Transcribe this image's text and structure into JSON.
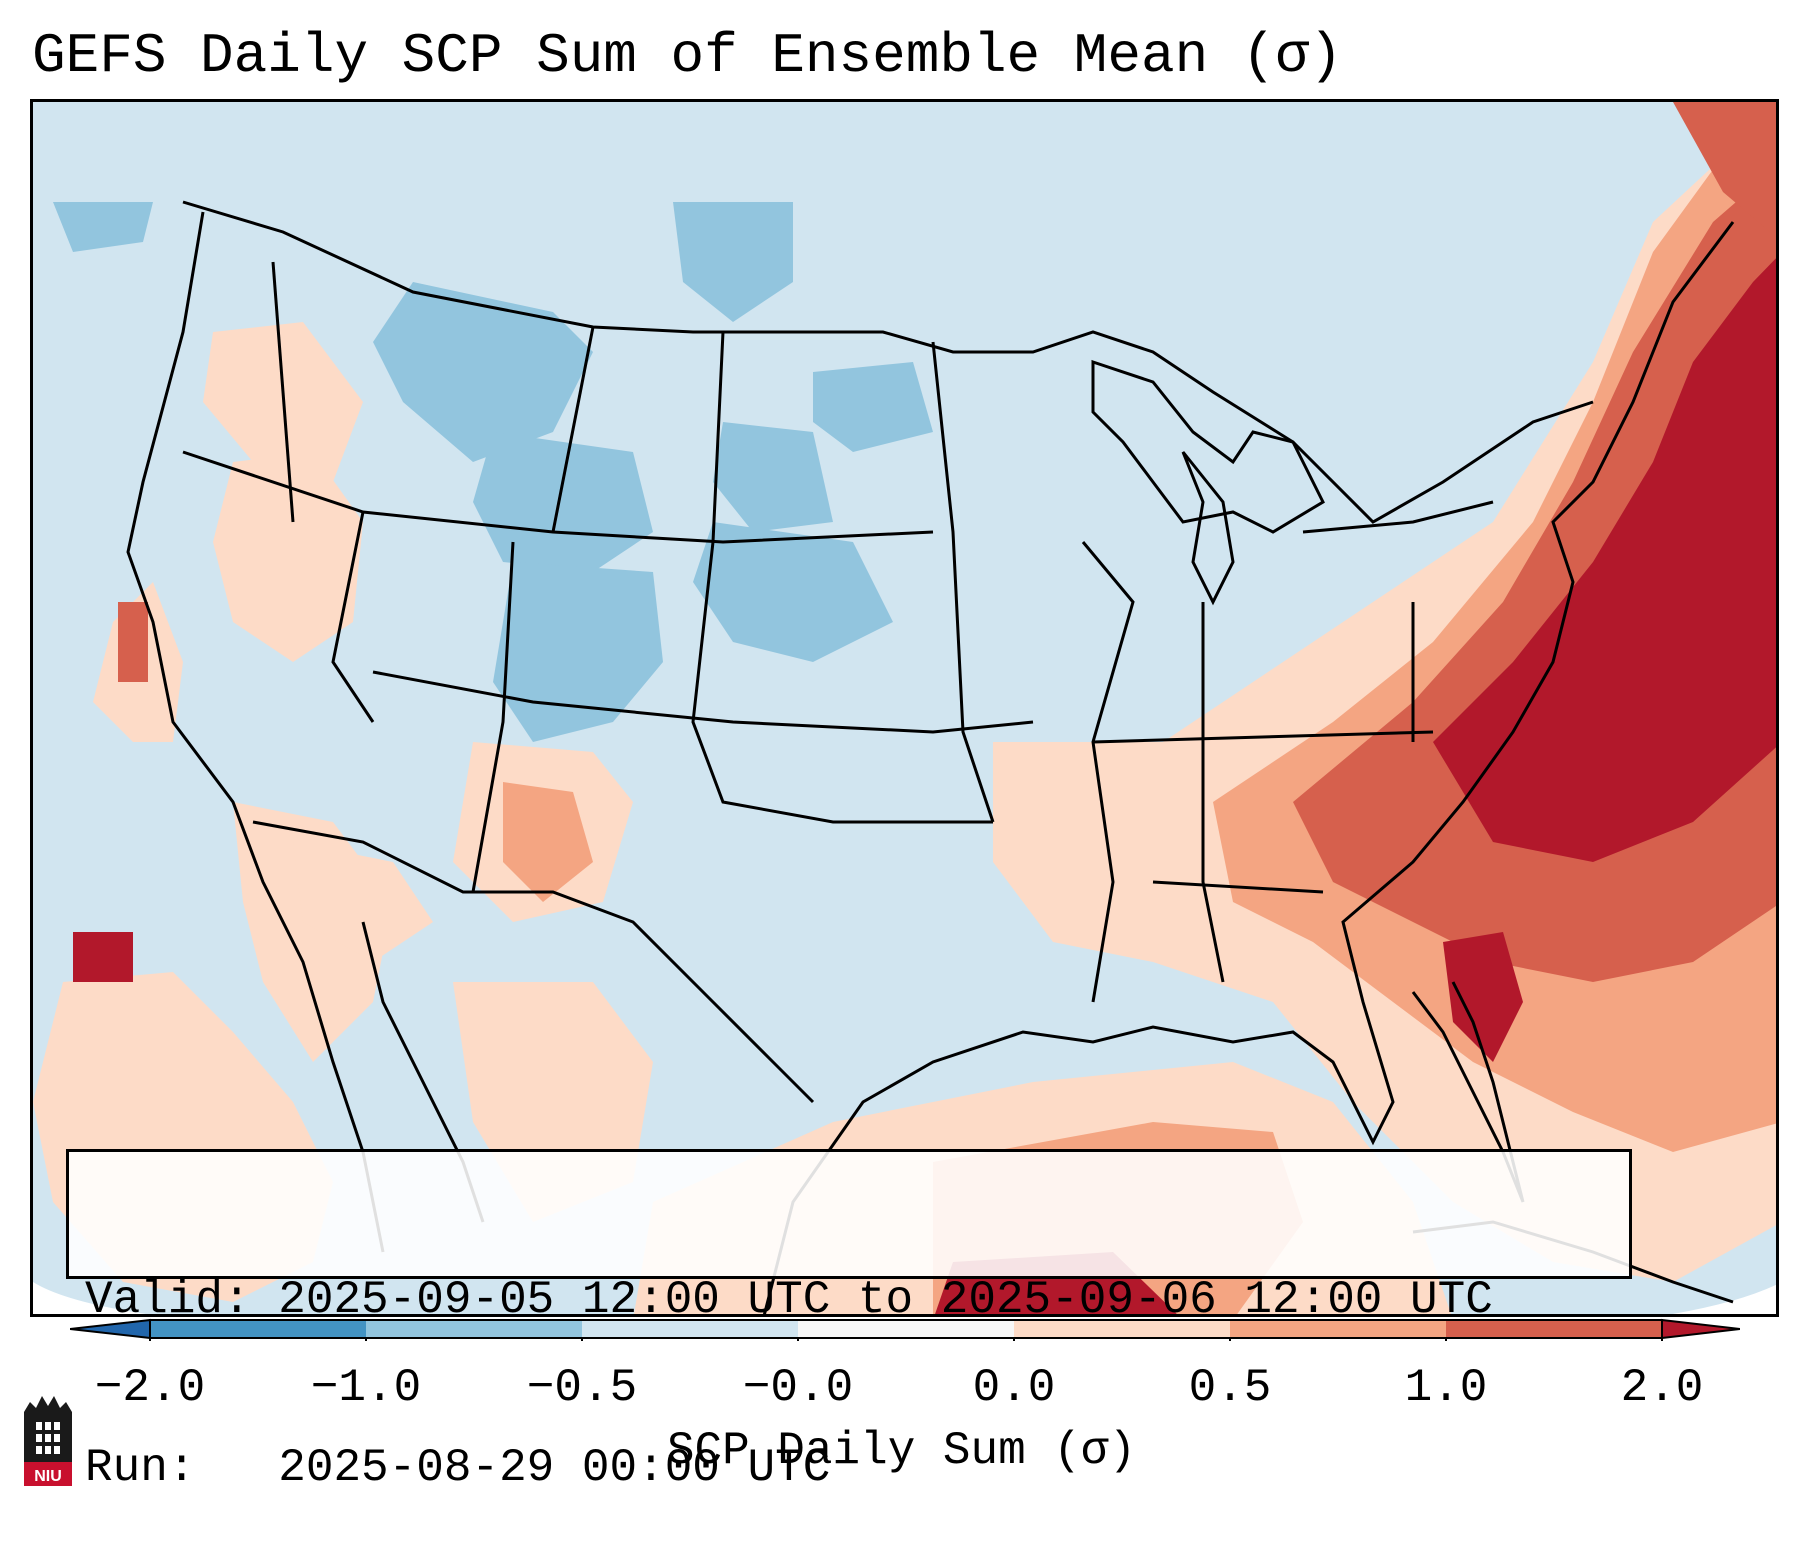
{
  "title": "GEFS Daily SCP Sum of Ensemble Mean (σ)",
  "info": {
    "valid_line": "Valid: 2025-09-05 12:00 UTC to 2025-09-06 12:00 UTC",
    "run_line": "Run:   2025-08-29 00:00 UTC"
  },
  "colorbar": {
    "label": "SCP Daily Sum (σ)",
    "tick_labels": [
      "−2.0",
      "−1.0",
      "−0.5",
      "−0.0",
      "0.0",
      "0.5",
      "1.0",
      "2.0"
    ],
    "colors": [
      "#4393c3",
      "#92c5de",
      "#d1e5f0",
      "#f7f7f7",
      "#fddbc7",
      "#f4a582",
      "#d6604d",
      "#b2182b"
    ],
    "extend_colors": {
      "low": "#2166ac",
      "high": "#b2182b"
    }
  },
  "map": {
    "background_category": "#d1e5f0",
    "regions": [
      {
        "name": "northern-rockies-low",
        "category": "#92c5de"
      },
      {
        "name": "colorado-plateau-low",
        "category": "#92c5de"
      },
      {
        "name": "central-plains-low",
        "category": "#92c5de"
      },
      {
        "name": "northern-plains-low",
        "category": "#92c5de"
      },
      {
        "name": "east-coast-high",
        "category": "#b2182b"
      },
      {
        "name": "carolina-high",
        "category": "#d6604d"
      },
      {
        "name": "southeast-elevated",
        "category": "#f4a582"
      },
      {
        "name": "gulf-elevated",
        "category": "#fddbc7"
      },
      {
        "name": "pacific-elevated",
        "category": "#fddbc7"
      },
      {
        "name": "new-mexico-elevated",
        "category": "#f4a582"
      },
      {
        "name": "great-basin-elevated",
        "category": "#fddbc7"
      },
      {
        "name": "caribbean-high",
        "category": "#b2182b"
      },
      {
        "name": "baja-high",
        "category": "#b2182b"
      }
    ]
  },
  "logo": {
    "text": "NIU",
    "colors": {
      "red": "#c8102e",
      "black": "#1a1a1a"
    }
  }
}
